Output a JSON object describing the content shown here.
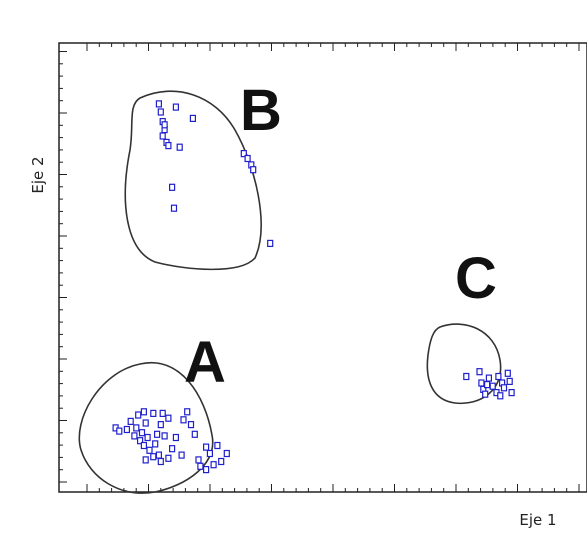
{
  "chart_data": {
    "type": "scatter",
    "title": "",
    "xlabel": "Eje 1",
    "ylabel": "Eje 2",
    "grid": false,
    "legend": "none",
    "xlim": [
      0,
      28
    ],
    "ylim": [
      0,
      28
    ],
    "marker_color": "#1f1fcc",
    "marker_shape": "hollow-square",
    "clusters": [
      {
        "label": "A",
        "points": [
          [
            3.0,
            4.0
          ],
          [
            3.2,
            3.8
          ],
          [
            3.6,
            3.9
          ],
          [
            3.8,
            4.4
          ],
          [
            4.0,
            3.5
          ],
          [
            4.1,
            4.0
          ],
          [
            4.3,
            3.2
          ],
          [
            4.4,
            3.7
          ],
          [
            4.5,
            2.9
          ],
          [
            4.6,
            4.3
          ],
          [
            4.7,
            3.4
          ],
          [
            4.8,
            2.6
          ],
          [
            5.0,
            2.2
          ],
          [
            5.1,
            3.0
          ],
          [
            5.2,
            3.6
          ],
          [
            5.3,
            2.3
          ],
          [
            5.4,
            4.2
          ],
          [
            5.6,
            3.5
          ],
          [
            5.8,
            4.6
          ],
          [
            4.2,
            4.8
          ],
          [
            4.5,
            5.0
          ],
          [
            5.0,
            4.9
          ],
          [
            5.5,
            4.9
          ],
          [
            6.6,
            4.5
          ],
          [
            6.8,
            5.0
          ],
          [
            7.0,
            4.2
          ],
          [
            7.2,
            3.6
          ],
          [
            6.2,
            3.4
          ],
          [
            6.0,
            2.7
          ],
          [
            6.5,
            2.3
          ],
          [
            5.8,
            2.1
          ],
          [
            4.6,
            2.0
          ],
          [
            5.4,
            1.9
          ],
          [
            7.8,
            2.8
          ],
          [
            8.0,
            2.4
          ],
          [
            8.4,
            2.9
          ],
          [
            7.5,
            1.6
          ],
          [
            7.8,
            1.4
          ],
          [
            8.2,
            1.7
          ],
          [
            8.6,
            1.9
          ],
          [
            8.9,
            2.4
          ],
          [
            7.4,
            2.0
          ]
        ]
      },
      {
        "label": "B",
        "points": [
          [
            5.3,
            24.2
          ],
          [
            5.4,
            23.7
          ],
          [
            5.5,
            23.1
          ],
          [
            5.6,
            22.6
          ],
          [
            5.5,
            22.2
          ],
          [
            5.7,
            21.8
          ],
          [
            5.8,
            21.6
          ],
          [
            5.6,
            22.9
          ],
          [
            6.2,
            24.0
          ],
          [
            6.4,
            21.5
          ],
          [
            7.1,
            23.3
          ],
          [
            6.0,
            19.0
          ],
          [
            6.1,
            17.7
          ],
          [
            9.8,
            21.1
          ],
          [
            10.0,
            20.8
          ],
          [
            10.2,
            20.4
          ],
          [
            10.3,
            20.1
          ],
          [
            11.2,
            15.5
          ]
        ]
      },
      {
        "label": "C",
        "points": [
          [
            21.6,
            7.2
          ],
          [
            22.3,
            7.5
          ],
          [
            22.4,
            6.8
          ],
          [
            22.5,
            6.4
          ],
          [
            22.6,
            6.1
          ],
          [
            22.8,
            7.1
          ],
          [
            23.0,
            6.6
          ],
          [
            23.2,
            6.2
          ],
          [
            23.3,
            7.2
          ],
          [
            23.5,
            6.8
          ],
          [
            23.6,
            6.5
          ],
          [
            23.8,
            7.4
          ],
          [
            23.9,
            6.9
          ],
          [
            24.0,
            6.2
          ],
          [
            23.4,
            6.0
          ],
          [
            22.7,
            6.7
          ]
        ]
      }
    ]
  }
}
